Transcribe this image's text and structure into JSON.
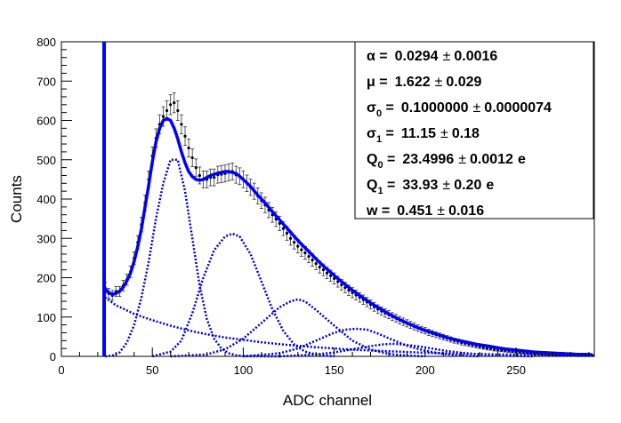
{
  "chart_data": {
    "type": "scatter",
    "title": "",
    "xlabel": "ADC channel",
    "ylabel": "Counts",
    "xlim": [
      0,
      293
    ],
    "ylim": [
      0,
      800
    ],
    "x_ticks": [
      0,
      50,
      100,
      150,
      200,
      250
    ],
    "y_ticks": [
      0,
      100,
      200,
      300,
      400,
      500,
      600,
      700,
      800
    ],
    "grid": false,
    "legend": "none",
    "colors": {
      "data": "#000000",
      "fit": "#0000ff",
      "components": "#0000cc"
    },
    "pedestal": {
      "x": 23.5,
      "y_top": 800
    },
    "series": [
      {
        "kind": "histogram_with_errors",
        "x": [
          24,
          26,
          28,
          30,
          32,
          34,
          36,
          38,
          40,
          42,
          44,
          46,
          48,
          50,
          52,
          54,
          56,
          58,
          60,
          62,
          64,
          66,
          68,
          70,
          72,
          74,
          76,
          78,
          80,
          82,
          84,
          86,
          88,
          90,
          92,
          94,
          96,
          98,
          100,
          102,
          104,
          106,
          108,
          110,
          112,
          114,
          116,
          118,
          120,
          122,
          124,
          126,
          128,
          130,
          132,
          134,
          136,
          138,
          140,
          142,
          144,
          146,
          148,
          150,
          152,
          154,
          156,
          158,
          160,
          162,
          164,
          166,
          168,
          170,
          172,
          174,
          176,
          178,
          180,
          182,
          184,
          186,
          188,
          190,
          192,
          194,
          196,
          198,
          200,
          202,
          204,
          206,
          208,
          210,
          212,
          214,
          216,
          218,
          220,
          222,
          224,
          226,
          228,
          230,
          232,
          234,
          236,
          238,
          240,
          242,
          244,
          246,
          248,
          250,
          252,
          254,
          256,
          258,
          260,
          262,
          264,
          266,
          268,
          270,
          272,
          274,
          276,
          278,
          280,
          282,
          284,
          286,
          288,
          290,
          292
        ],
        "y": [
          175,
          160,
          155,
          165,
          165,
          180,
          195,
          215,
          250,
          290,
          335,
          390,
          450,
          510,
          555,
          590,
          610,
          625,
          640,
          645,
          625,
          590,
          560,
          530,
          505,
          480,
          460,
          450,
          450,
          455,
          455,
          462,
          463,
          465,
          468,
          470,
          462,
          458,
          450,
          440,
          430,
          420,
          408,
          396,
          385,
          372,
          360,
          349,
          338,
          325,
          313,
          300,
          290,
          280,
          271,
          263,
          254,
          245,
          236,
          227,
          220,
          212,
          205,
          198,
          190,
          182,
          175,
          168,
          162,
          156,
          150,
          144,
          138,
          132,
          126,
          120,
          115,
          110,
          106,
          101,
          97,
          92,
          88,
          84,
          80,
          76,
          72,
          68,
          65,
          61,
          58,
          55,
          52,
          49,
          46,
          43,
          40,
          38,
          35,
          33,
          31,
          29,
          27,
          25,
          23,
          21,
          20,
          18,
          17,
          16,
          15,
          14,
          13,
          12,
          11,
          10,
          9,
          8,
          8,
          7,
          6,
          6,
          5,
          5,
          4,
          4,
          4,
          3,
          3,
          3,
          2,
          2,
          2,
          2,
          2
        ]
      },
      {
        "kind": "fit_total",
        "x": [
          24,
          26,
          28,
          30,
          32,
          34,
          36,
          38,
          40,
          42,
          44,
          46,
          48,
          50,
          52,
          54,
          56,
          58,
          60,
          62,
          64,
          66,
          68,
          70,
          72,
          74,
          76,
          78,
          80,
          82,
          84,
          86,
          88,
          90,
          92,
          94,
          96,
          98,
          100,
          104,
          108,
          112,
          116,
          120,
          124,
          128,
          132,
          136,
          140,
          144,
          148,
          152,
          156,
          160,
          164,
          168,
          172,
          176,
          180,
          184,
          188,
          192,
          196,
          200,
          204,
          208,
          212,
          216,
          220,
          224,
          228,
          232,
          236,
          240,
          244,
          248,
          252,
          256,
          260,
          264,
          268,
          272,
          276,
          280,
          284,
          288,
          292
        ],
        "y": [
          172,
          162,
          158,
          160,
          166,
          176,
          192,
          212,
          242,
          280,
          325,
          380,
          435,
          495,
          545,
          580,
          600,
          605,
          600,
          580,
          553,
          520,
          492,
          470,
          457,
          450,
          448,
          450,
          455,
          460,
          463,
          466,
          468,
          470,
          470,
          468,
          465,
          458,
          450,
          432,
          410,
          390,
          368,
          347,
          326,
          305,
          285,
          267,
          248,
          230,
          214,
          198,
          183,
          168,
          155,
          142,
          130,
          119,
          108,
          98,
          89,
          81,
          73,
          66,
          60,
          54,
          48,
          43,
          39,
          35,
          31,
          28,
          25,
          22,
          19,
          17,
          15,
          13,
          11,
          10,
          9,
          8,
          7,
          6,
          5,
          5,
          4
        ]
      },
      {
        "kind": "fit_component",
        "name": "",
        "x": [
          24,
          28,
          32,
          36,
          40,
          44,
          48,
          52,
          56,
          60,
          64,
          68,
          72,
          76,
          80,
          84,
          88,
          92,
          96,
          100,
          110,
          120
        ],
        "y": [
          0,
          2,
          10,
          35,
          80,
          150,
          240,
          350,
          440,
          500,
          500,
          420,
          300,
          180,
          95,
          45,
          20,
          8,
          3,
          1,
          0,
          0
        ]
      },
      {
        "kind": "fit_component",
        "name": "",
        "x": [
          50,
          60,
          66,
          72,
          78,
          84,
          90,
          94,
          98,
          104,
          110,
          116,
          122,
          128,
          134,
          140,
          150
        ],
        "y": [
          0,
          12,
          40,
          110,
          200,
          270,
          305,
          312,
          305,
          260,
          190,
          120,
          65,
          30,
          12,
          5,
          0
        ]
      },
      {
        "kind": "fit_component",
        "name": "",
        "x": [
          60,
          80,
          90,
          100,
          110,
          120,
          126,
          130,
          134,
          140,
          150,
          160,
          170,
          180,
          190,
          200
        ],
        "y": [
          0,
          5,
          18,
          45,
          85,
          125,
          140,
          145,
          140,
          118,
          78,
          40,
          17,
          6,
          2,
          0
        ]
      },
      {
        "kind": "fit_component",
        "name": "",
        "x": [
          100,
          120,
          130,
          140,
          150,
          156,
          162,
          168,
          174,
          180,
          190,
          200,
          210,
          220,
          230
        ],
        "y": [
          0,
          8,
          20,
          40,
          60,
          68,
          70,
          68,
          58,
          46,
          27,
          14,
          6,
          2,
          0
        ]
      },
      {
        "kind": "fit_component",
        "name": "",
        "x": [
          120,
          140,
          150,
          160,
          170,
          176,
          182,
          188,
          194,
          200,
          210,
          220,
          230,
          240,
          250,
          260
        ],
        "y": [
          0,
          5,
          10,
          18,
          26,
          30,
          32,
          30,
          27,
          23,
          15,
          9,
          5,
          2,
          1,
          0
        ]
      },
      {
        "kind": "fit_component",
        "name": "",
        "x": [
          24,
          30,
          40,
          50,
          60,
          70,
          80,
          90,
          100,
          110,
          120,
          130,
          140,
          150,
          160,
          170,
          180,
          190,
          200,
          220,
          240,
          260,
          280,
          292
        ],
        "y": [
          150,
          130,
          108,
          92,
          78,
          66,
          56,
          48,
          42,
          36,
          31,
          27,
          23,
          20,
          17,
          15,
          13,
          11,
          9,
          7,
          5,
          4,
          3,
          2
        ]
      }
    ],
    "fit_results": [
      {
        "label": "α =",
        "value": "0.0294",
        "pm": "±",
        "error": "0.0016",
        "unit": ""
      },
      {
        "label": "μ =",
        "value": "1.622",
        "pm": "±",
        "error": "0.029",
        "unit": ""
      },
      {
        "label": "σ",
        "sub": "0",
        "eq": " =",
        "value": "0.1000000",
        "pm": "±",
        "error": "0.0000074",
        "unit": ""
      },
      {
        "label": "σ",
        "sub": "1",
        "eq": " =",
        "value": "11.15",
        "pm": "±",
        "error": "0.18",
        "unit": ""
      },
      {
        "label": "Q",
        "sub": "0",
        "eq": " =",
        "value": "23.4996",
        "pm": "±",
        "error": "0.0012",
        "unit": "e"
      },
      {
        "label": "Q",
        "sub": "1",
        "eq": " =",
        "value": "33.93",
        "pm": "±",
        "error": "0.20",
        "unit": "e"
      },
      {
        "label": "w =",
        "value": "0.451",
        "pm": "±",
        "error": "0.016",
        "unit": ""
      }
    ]
  }
}
